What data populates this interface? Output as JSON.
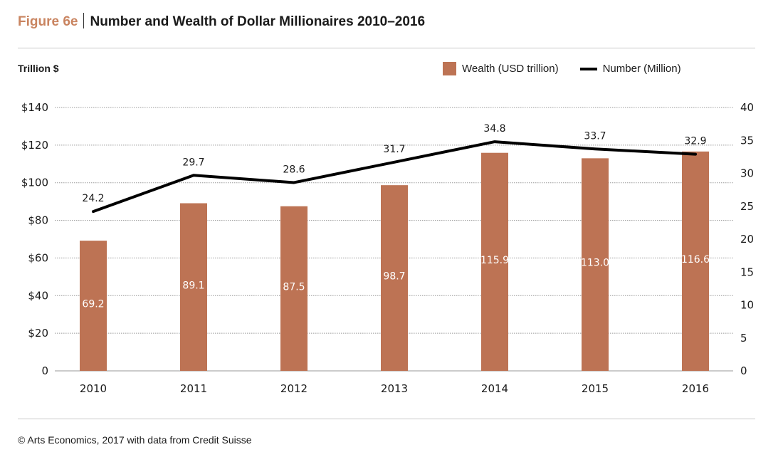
{
  "header": {
    "figure_label": "Figure 6e",
    "title": "Number and Wealth of Dollar Millionaires 2010–2016"
  },
  "footer": {
    "source": "© Arts Economics, 2017 with data from Credit Suisse"
  },
  "colors": {
    "bar": "#bd7354",
    "line": "#000000",
    "figure_label": "#c98460"
  },
  "chart_data": {
    "type": "bar+line",
    "title": "Number and Wealth of Dollar Millionaires 2010–2016",
    "ylabel": "Trillion $",
    "categories": [
      "2010",
      "2011",
      "2012",
      "2013",
      "2014",
      "2015",
      "2016"
    ],
    "series": [
      {
        "name": "Wealth (USD trillion)",
        "type": "bar",
        "axis": "left",
        "values": [
          69.2,
          89.1,
          87.5,
          98.7,
          115.9,
          113.0,
          116.6
        ],
        "labels": [
          "69.2",
          "89.1",
          "87.5",
          "98.7",
          "115.9",
          "113.0",
          "116.6"
        ]
      },
      {
        "name": "Number (Million)",
        "type": "line",
        "axis": "right",
        "values": [
          24.2,
          29.7,
          28.6,
          31.7,
          34.8,
          33.7,
          32.9
        ],
        "labels": [
          "24.2",
          "29.7",
          "28.6",
          "31.7",
          "34.8",
          "33.7",
          "32.9"
        ]
      }
    ],
    "y_left": {
      "range": [
        0,
        140
      ],
      "ticks": [
        "0",
        "$20",
        "$40",
        "$60",
        "$80",
        "$100",
        "$120",
        "$140"
      ]
    },
    "y_right": {
      "range": [
        0,
        40
      ],
      "ticks": [
        "0",
        "5",
        "10",
        "15",
        "20",
        "25",
        "30",
        "35",
        "40"
      ]
    },
    "grid": true,
    "legend": "top-right"
  }
}
